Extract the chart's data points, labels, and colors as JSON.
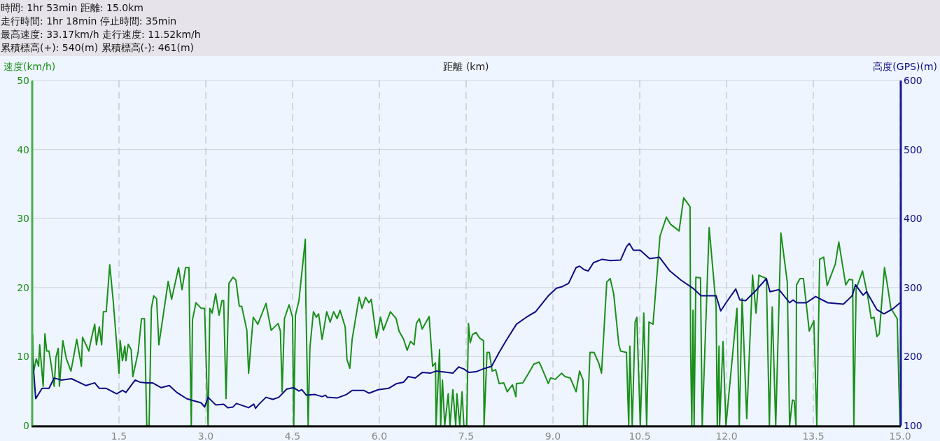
{
  "chart_data": {
    "type": "line",
    "annotations": [
      "時間: 1hr 53min  距離: 15.0km",
      "走行時間: 1hr 18min  停止時間: 35min",
      "最高速度: 33.17km/h  走行速度: 11.52km/h",
      "累積標高(+): 540(m)  累積標高(-): 461(m)"
    ],
    "xlabel": "距離 (km)",
    "ylabel": "速度(km/h)",
    "y2label": "高度(GPS)(m)",
    "xlim": [
      0,
      15.0
    ],
    "xticks": [
      1.5,
      {
        "value": 3,
        "label": "3.0"
      },
      4.5,
      {
        "value": 6,
        "label": "6.0"
      },
      7.5,
      {
        "value": 9,
        "label": "9.0"
      },
      10.5,
      {
        "value": 12,
        "label": "12.0"
      },
      13.5,
      {
        "value": 15,
        "label": "15.0"
      }
    ],
    "ylim": [
      0,
      50
    ],
    "yticks": [
      0,
      10,
      20,
      30,
      40,
      50
    ],
    "y2lim": [
      100,
      600
    ],
    "y2ticks": [
      100,
      200,
      300,
      400,
      500,
      600
    ],
    "grid": true,
    "series": [
      {
        "color": "#1a8f1a",
        "x": [
          0.01,
          0.02,
          0.07,
          0.11,
          0.13,
          0.19,
          0.22,
          0.25,
          0.29,
          0.33,
          0.38,
          0.41,
          0.45,
          0.47,
          0.53,
          0.59,
          0.67,
          0.77,
          0.85,
          0.87,
          0.98,
          1.02,
          1.08,
          1.11,
          1.16,
          1.2,
          1.23,
          1.28,
          1.34,
          1.4,
          1.5,
          1.52,
          1.56,
          1.6,
          1.62,
          1.66,
          1.71,
          1.74,
          1.83,
          1.89,
          1.94,
          1.98,
          2.02,
          2.06,
          2.1,
          2.15,
          2.19,
          2.35,
          2.41,
          2.53,
          2.59,
          2.65,
          2.71,
          2.72,
          2.75,
          2.77,
          2.83,
          2.92,
          2.98,
          3.04,
          3.07,
          3.11,
          3.17,
          3.23,
          3.28,
          3.31,
          3.35,
          3.4,
          3.47,
          3.52,
          3.58,
          3.62,
          3.71,
          3.74,
          3.82,
          3.9,
          4.04,
          4.13,
          4.25,
          4.29,
          4.32,
          4.36,
          4.44,
          4.5,
          4.52,
          4.55,
          4.61,
          4.72,
          4.73,
          4.77,
          4.8,
          4.86,
          4.91,
          4.95,
          5.01,
          5.09,
          5.15,
          5.21,
          5.27,
          5.32,
          5.41,
          5.44,
          5.49,
          5.53,
          5.65,
          5.7,
          5.76,
          5.82,
          5.86,
          5.95,
          6.02,
          6.07,
          6.19,
          6.29,
          6.34,
          6.42,
          6.48,
          6.54,
          6.6,
          6.64,
          6.69,
          6.74,
          6.86,
          6.92,
          6.97,
          6.98,
          7.04,
          7.06,
          7.09,
          7.13,
          7.19,
          7.22,
          7.27,
          7.32,
          7.34,
          7.39,
          7.43,
          7.46,
          7.51,
          7.54,
          7.57,
          7.61,
          7.67,
          7.73,
          7.8,
          7.81,
          7.86,
          7.9,
          7.95,
          8.01,
          8.07,
          8.15,
          8.21,
          8.3,
          8.36,
          8.37,
          8.48,
          8.58,
          8.67,
          8.76,
          8.79,
          8.92,
          8.96,
          9.04,
          9.15,
          9.21,
          9.3,
          9.4,
          9.46,
          9.52,
          9.53,
          9.59,
          9.64,
          9.71,
          9.79,
          9.84,
          9.93,
          9.99,
          10.05,
          10.14,
          10.17,
          10.27,
          10.31,
          10.33,
          10.37,
          10.42,
          10.45,
          10.51,
          10.57,
          10.62,
          10.66,
          10.73,
          10.85,
          10.96,
          11.03,
          11.18,
          11.26,
          11.37,
          11.38,
          11.4,
          11.42,
          11.44,
          11.47,
          11.55,
          11.58,
          11.7,
          11.82,
          11.84,
          11.87,
          11.88,
          11.94,
          11.99,
          12.18,
          12.22,
          12.27,
          12.35,
          12.45,
          12.51,
          12.56,
          12.69,
          12.74,
          12.79,
          12.85,
          12.94,
          13.05,
          13.09,
          13.14,
          13.17,
          13.2,
          13.21,
          13.27,
          13.33,
          13.43,
          13.51,
          13.56,
          13.61,
          13.68,
          13.74,
          13.88,
          13.94,
          14.06,
          14.12,
          14.18,
          14.2,
          14.24,
          14.35,
          14.44,
          14.5,
          14.55,
          14.6,
          14.64,
          14.73,
          14.78,
          14.84,
          14.95,
          14.98,
          15.0
        ],
        "values": [
          13.2,
          7.6,
          9.7,
          8.6,
          11.7,
          5.7,
          13.3,
          10.8,
          10.8,
          8.7,
          5.7,
          9.9,
          11.2,
          5.7,
          12.3,
          9.7,
          7.9,
          12.5,
          8.6,
          12.8,
          10.8,
          12.5,
          14.7,
          11.7,
          14.3,
          11.7,
          16.5,
          16.5,
          23.3,
          18.1,
          7.6,
          12.3,
          9.4,
          11.5,
          9.4,
          11.8,
          11.0,
          7.1,
          10.6,
          15.5,
          15.5,
          0,
          0,
          17.0,
          18.8,
          18.4,
          11.7,
          20.9,
          18.3,
          22.9,
          19.7,
          22.9,
          22.9,
          15.3,
          0,
          15.3,
          17.8,
          17.0,
          17.0,
          0,
          17.0,
          16.3,
          19.1,
          16.0,
          18.1,
          18.1,
          3.9,
          20.6,
          21.5,
          21.1,
          17.3,
          17.3,
          13.8,
          7.6,
          15.7,
          14.7,
          17.7,
          13.8,
          14.8,
          13.7,
          4.9,
          15.5,
          17.5,
          15.7,
          0,
          16.0,
          18.1,
          27.0,
          18.1,
          0,
          11.3,
          16.5,
          15.7,
          16.2,
          12.5,
          16.5,
          15.0,
          16.5,
          15.5,
          16.7,
          14.3,
          9.6,
          8.3,
          12.5,
          18.6,
          17.0,
          18.6,
          17.8,
          18.3,
          12.7,
          15.7,
          13.8,
          16.5,
          15.5,
          13.7,
          12.5,
          10.9,
          12.2,
          11.7,
          14.8,
          15.5,
          14.0,
          15.8,
          8.6,
          9.1,
          0,
          11.0,
          0,
          6.6,
          0,
          4.6,
          0,
          5.2,
          0,
          4.6,
          0,
          4.9,
          0,
          0,
          14.8,
          12.0,
          13.2,
          13.5,
          12.7,
          12.3,
          0,
          10.6,
          10.6,
          7.9,
          8.1,
          6.1,
          6.2,
          4.9,
          5.9,
          4.2,
          6.1,
          6.2,
          7.6,
          8.9,
          9.2,
          8.7,
          6.1,
          6.9,
          6.7,
          7.6,
          7.1,
          6.9,
          4.9,
          7.9,
          6.6,
          0,
          0,
          10.6,
          10.6,
          9.1,
          7.6,
          20.8,
          21.3,
          19.1,
          11.7,
          10.8,
          10.6,
          0,
          11.5,
          0,
          15.0,
          15.7,
          0,
          16.3,
          0,
          15.0,
          14.7,
          27.4,
          30.2,
          29.2,
          28.2,
          33.0,
          31.7,
          11.0,
          0,
          16.7,
          0,
          21.5,
          21.4,
          0,
          28.7,
          17.3,
          0,
          11.5,
          0,
          12.2,
          0,
          17.0,
          0,
          18.4,
          1.0,
          21.8,
          16.3,
          21.8,
          21.3,
          0,
          17.2,
          0,
          27.9,
          20.8,
          0,
          3.7,
          3.6,
          0,
          20.4,
          21.3,
          21.3,
          13.7,
          15.2,
          0,
          24.1,
          24.4,
          20.3,
          23.4,
          26.6,
          20.4,
          21.2,
          21.1,
          0,
          19.8,
          22.4,
          18.8,
          15.5,
          15.7,
          12.9,
          13.3,
          22.9,
          20.4,
          17.0,
          15.5,
          5.6,
          0
        ]
      },
      {
        "color": "#0c0c82",
        "axis": "y2",
        "x": [
          0.01,
          0.06,
          0.17,
          0.29,
          0.38,
          0.5,
          0.68,
          0.93,
          1.08,
          1.16,
          1.28,
          1.46,
          1.56,
          1.62,
          1.78,
          1.86,
          1.98,
          2.08,
          2.23,
          2.37,
          2.5,
          2.67,
          2.75,
          2.92,
          2.98,
          3.04,
          3.17,
          3.31,
          3.38,
          3.47,
          3.53,
          3.74,
          3.83,
          3.86,
          3.92,
          4.04,
          4.16,
          4.26,
          4.4,
          4.52,
          4.61,
          4.66,
          4.74,
          4.89,
          5.01,
          5.07,
          5.1,
          5.27,
          5.43,
          5.53,
          5.73,
          5.82,
          5.98,
          6.16,
          6.3,
          6.42,
          6.5,
          6.62,
          6.74,
          6.88,
          6.98,
          7.27,
          7.37,
          7.46,
          7.55,
          7.67,
          7.79,
          7.94,
          8.07,
          8.19,
          8.37,
          8.54,
          8.7,
          8.92,
          9.06,
          9.15,
          9.27,
          9.4,
          9.46,
          9.54,
          9.61,
          9.7,
          9.85,
          9.99,
          10.17,
          10.27,
          10.32,
          10.39,
          10.51,
          10.67,
          10.84,
          11.02,
          11.21,
          11.42,
          11.56,
          11.82,
          11.9,
          12.0,
          12.16,
          12.23,
          12.33,
          12.51,
          12.69,
          12.75,
          12.91,
          13.09,
          13.15,
          13.21,
          13.38,
          13.54,
          13.75,
          14.02,
          14.17,
          14.23,
          14.36,
          14.42,
          14.6,
          14.72,
          14.87,
          15.0
        ],
        "values": [
          197,
          139,
          154,
          154,
          169,
          166,
          168,
          158,
          162,
          154,
          154,
          146,
          151,
          148,
          166,
          163,
          162,
          162,
          155,
          158,
          148,
          139,
          137,
          133,
          127,
          141,
          130,
          131,
          126,
          127,
          132,
          126,
          131,
          125,
          131,
          141,
          138,
          141,
          153,
          155,
          150,
          152,
          144,
          145,
          142,
          144,
          141,
          140,
          145,
          151,
          151,
          147,
          152,
          154,
          161,
          163,
          171,
          169,
          177,
          176,
          179,
          176,
          185,
          182,
          177,
          178,
          182,
          186,
          206,
          223,
          247,
          257,
          265,
          288,
          299,
          301,
          306,
          329,
          331,
          326,
          324,
          336,
          341,
          339,
          340,
          359,
          364,
          354,
          354,
          342,
          344,
          324,
          311,
          299,
          288,
          288,
          266,
          279,
          298,
          282,
          281,
          296,
          313,
          294,
          297,
          278,
          282,
          278,
          278,
          287,
          278,
          276,
          288,
          304,
          289,
          294,
          268,
          262,
          269,
          278
        ]
      }
    ]
  }
}
